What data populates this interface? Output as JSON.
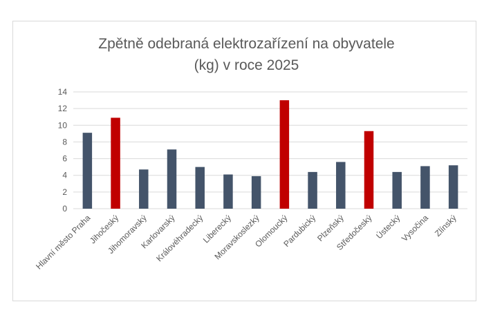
{
  "chart_data": {
    "type": "bar",
    "title_lines": [
      "Zpětně odebraná elektrozařízení na obyvatele",
      "(kg) v roce 2025"
    ],
    "categories": [
      "Hlavní město Praha",
      "Jihočeský",
      "Jihomoravský",
      "Karlovarský",
      "Královéhradecký",
      "Liberecký",
      "Moravskoslezký",
      "Olomoucký",
      "Pardubický",
      "Plzeňský",
      "Středočeský",
      "Ústecký",
      "Vysočina",
      "Zlínský"
    ],
    "values": [
      9.1,
      10.9,
      4.7,
      7.1,
      5.0,
      4.1,
      3.9,
      13.0,
      4.4,
      5.6,
      9.3,
      4.4,
      5.1,
      5.2
    ],
    "highlighted": [
      "Jihočeský",
      "Olomoucký",
      "Středočeský"
    ],
    "ylim": [
      0,
      14
    ],
    "yticks": [
      0,
      2,
      4,
      6,
      8,
      10,
      12,
      14
    ],
    "grid": true,
    "legend": "none",
    "colors": {
      "default": "#44546a",
      "highlight": "#c00000"
    }
  }
}
